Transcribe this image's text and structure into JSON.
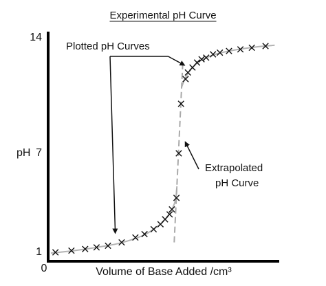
{
  "chart_data": {
    "type": "scatter",
    "title": "Experimental pH Curve",
    "xlabel": "Volume of Base Added /cm³",
    "ylabel": "pH",
    "x_tick_labels": [
      "0"
    ],
    "y_ticks": [
      1,
      7,
      14
    ],
    "y_tick_labels": [
      "1",
      "7",
      "14"
    ],
    "ylim": [
      0.5,
      14
    ],
    "xlim": [
      0,
      50
    ],
    "grid": false,
    "legend": "none",
    "marker": "x",
    "colors": {
      "axis": "#000000",
      "curve": "#b3b3b3",
      "marker": "#111111",
      "text": "#111111"
    },
    "points": [
      {
        "x": 1.0,
        "y": 1.0
      },
      {
        "x": 4.5,
        "y": 1.1
      },
      {
        "x": 7.5,
        "y": 1.2
      },
      {
        "x": 10.0,
        "y": 1.3
      },
      {
        "x": 12.5,
        "y": 1.4
      },
      {
        "x": 15.5,
        "y": 1.6
      },
      {
        "x": 18.5,
        "y": 1.9
      },
      {
        "x": 20.5,
        "y": 2.1
      },
      {
        "x": 22.5,
        "y": 2.4
      },
      {
        "x": 24.0,
        "y": 2.7
      },
      {
        "x": 25.0,
        "y": 3.0
      },
      {
        "x": 26.0,
        "y": 3.3
      },
      {
        "x": 26.5,
        "y": 3.6
      },
      {
        "x": 27.5,
        "y": 4.3
      },
      {
        "x": 28.0,
        "y": 7.0
      },
      {
        "x": 28.5,
        "y": 10.0
      },
      {
        "x": 29.5,
        "y": 11.5
      },
      {
        "x": 30.0,
        "y": 11.9
      },
      {
        "x": 31.0,
        "y": 12.2
      },
      {
        "x": 32.0,
        "y": 12.5
      },
      {
        "x": 33.0,
        "y": 12.7
      },
      {
        "x": 34.0,
        "y": 12.8
      },
      {
        "x": 35.5,
        "y": 13.0
      },
      {
        "x": 37.0,
        "y": 13.1
      },
      {
        "x": 39.0,
        "y": 13.2
      },
      {
        "x": 41.5,
        "y": 13.3
      },
      {
        "x": 44.0,
        "y": 13.4
      },
      {
        "x": 47.0,
        "y": 13.5
      }
    ],
    "fitted_curve": [
      {
        "x": 0,
        "y": 0.95
      },
      {
        "x": 5,
        "y": 1.1
      },
      {
        "x": 10,
        "y": 1.3
      },
      {
        "x": 15,
        "y": 1.55
      },
      {
        "x": 20,
        "y": 2.0
      },
      {
        "x": 23,
        "y": 2.5
      },
      {
        "x": 25,
        "y": 3.0
      },
      {
        "x": 26.5,
        "y": 3.6
      },
      {
        "x": 27.3,
        "y": 4.2
      },
      {
        "x": 27.6,
        "y": 5.0
      }
    ],
    "fitted_curve_upper": [
      {
        "x": 28.6,
        "y": 11.0
      },
      {
        "x": 29.5,
        "y": 11.6
      },
      {
        "x": 31,
        "y": 12.2
      },
      {
        "x": 33,
        "y": 12.65
      },
      {
        "x": 36,
        "y": 13.0
      },
      {
        "x": 40,
        "y": 13.25
      },
      {
        "x": 45,
        "y": 13.45
      },
      {
        "x": 49,
        "y": 13.55
      }
    ],
    "extrapolated_line": [
      {
        "x": 27.0,
        "y": 1.6
      },
      {
        "x": 28.9,
        "y": 12.6
      }
    ],
    "annotations": [
      {
        "text": "Plotted pH Curves",
        "arrows_to": [
          {
            "x": 15.0,
            "y": 1.9
          },
          {
            "x": 30.5,
            "y": 12.5
          }
        ]
      },
      {
        "text_lines": [
          "Extrapolated",
          "pH Curve"
        ],
        "arrows_to": [
          {
            "x": 28.5,
            "y": 7.7
          }
        ]
      }
    ]
  }
}
